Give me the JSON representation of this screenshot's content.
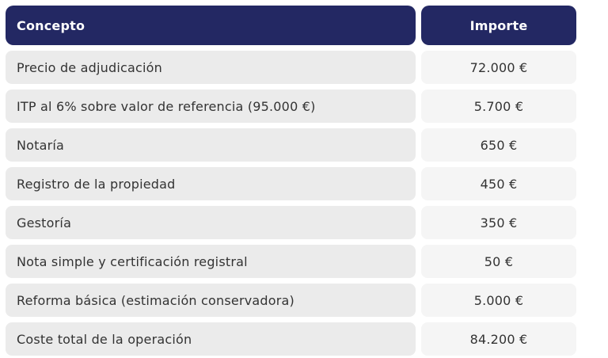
{
  "table": {
    "columns": [
      {
        "label": "Concepto"
      },
      {
        "label": "Importe"
      }
    ],
    "rows": [
      {
        "concepto": "Precio de adjudicación",
        "importe": "72.000 €"
      },
      {
        "concepto": "ITP al 6% sobre valor de referencia (95.000 €)",
        "importe": "5.700 €"
      },
      {
        "concepto": "Notaría",
        "importe": "650 €"
      },
      {
        "concepto": "Registro de la propiedad",
        "importe": "450 €"
      },
      {
        "concepto": "Gestoría",
        "importe": "350 €"
      },
      {
        "concepto": "Nota simple y certificación registral",
        "importe": "50 €"
      },
      {
        "concepto": "Reforma básica (estimación conservadora)",
        "importe": "5.000 €"
      },
      {
        "concepto": "Coste total de la operación",
        "importe": "84.200 €"
      }
    ],
    "colors": {
      "header_bg": "#232863",
      "header_text": "#ffffff",
      "concept_cell_bg": "#ebebeb",
      "amount_cell_bg": "#f5f5f5",
      "body_text": "#333333"
    }
  }
}
